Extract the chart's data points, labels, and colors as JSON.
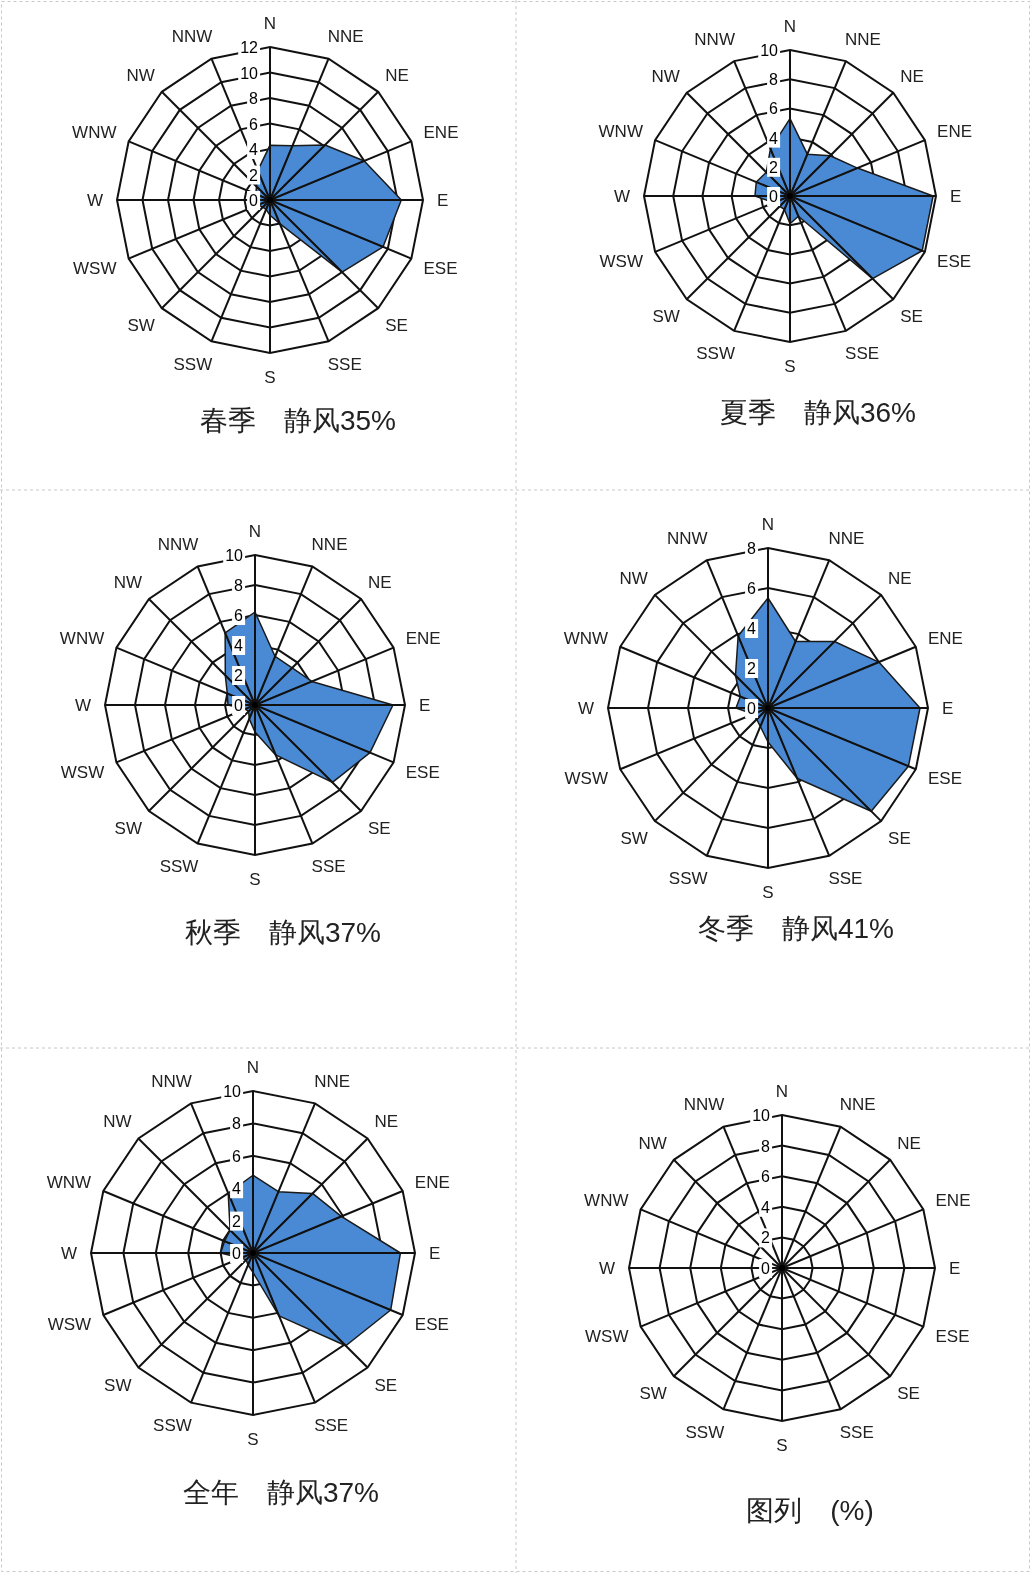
{
  "chart_data": [
    {
      "type": "radar",
      "title": "春季　静风35%",
      "categories": [
        "N",
        "NNE",
        "NE",
        "ENE",
        "E",
        "ESE",
        "SE",
        "SSE",
        "S",
        "SSW",
        "SW",
        "WSW",
        "W",
        "WNW",
        "NW",
        "NNW"
      ],
      "ylim": [
        0,
        12
      ],
      "yticks": [
        0,
        2,
        4,
        6,
        8,
        10,
        12
      ],
      "grid": true,
      "series": [
        {
          "color": "#4a8ad4",
          "values": [
            4.3,
            4.6,
            6.1,
            8.0,
            10.3,
            9.6,
            8.0,
            2.0,
            1.2,
            0.8,
            0.8,
            1.0,
            1.8,
            1.2,
            1.5,
            2.5
          ]
        }
      ]
    },
    {
      "type": "radar",
      "title": "夏季　静风36%",
      "categories": [
        "N",
        "NNE",
        "NE",
        "ENE",
        "E",
        "ESE",
        "SE",
        "SSE",
        "S",
        "SSW",
        "SW",
        "WSW",
        "W",
        "WNW",
        "NW",
        "NNW"
      ],
      "ylim": [
        0,
        10
      ],
      "yticks": [
        0,
        2,
        4,
        6,
        8,
        10
      ],
      "grid": true,
      "series": [
        {
          "color": "#4a8ad4",
          "values": [
            5.3,
            3.1,
            3.9,
            5.0,
            9.8,
            9.8,
            8.0,
            1.5,
            1.9,
            1.0,
            1.0,
            1.2,
            2.4,
            2.5,
            2.3,
            3.5
          ]
        }
      ]
    },
    {
      "type": "radar",
      "title": "秋季　静风37%",
      "categories": [
        "N",
        "NNE",
        "NE",
        "ENE",
        "E",
        "ESE",
        "SE",
        "SSE",
        "S",
        "SSW",
        "SW",
        "WSW",
        "W",
        "WNW",
        "NW",
        "NNW"
      ],
      "ylim": [
        0,
        10
      ],
      "yticks": [
        0,
        2,
        4,
        6,
        8,
        10
      ],
      "grid": true,
      "series": [
        {
          "color": "#4a8ad4",
          "values": [
            6.2,
            3.5,
            3.5,
            4.1,
            9.2,
            8.3,
            7.3,
            3.6,
            1.8,
            1.0,
            0.6,
            0.7,
            1.8,
            2.0,
            2.8,
            5.2
          ]
        }
      ]
    },
    {
      "type": "radar",
      "title": "冬季　静风41%",
      "categories": [
        "N",
        "NNE",
        "NE",
        "ENE",
        "E",
        "ESE",
        "SE",
        "SSE",
        "S",
        "SSW",
        "SW",
        "WSW",
        "W",
        "WNW",
        "NW",
        "NNW"
      ],
      "ylim": [
        0,
        8
      ],
      "yticks": [
        0,
        2,
        4,
        6,
        8
      ],
      "grid": true,
      "series": [
        {
          "color": "#4a8ad4",
          "values": [
            5.5,
            3.6,
            4.7,
            6.0,
            7.6,
            7.6,
            7.3,
            3.8,
            1.7,
            1.0,
            0.8,
            0.8,
            1.6,
            1.5,
            2.3,
            3.9
          ]
        }
      ]
    },
    {
      "type": "radar",
      "title": "全年　静风37%",
      "categories": [
        "N",
        "NNE",
        "NE",
        "ENE",
        "E",
        "ESE",
        "SE",
        "SSE",
        "S",
        "SSW",
        "SW",
        "WSW",
        "W",
        "WNW",
        "NW",
        "NNW"
      ],
      "ylim": [
        0,
        10
      ],
      "yticks": [
        0,
        2,
        4,
        6,
        8,
        10
      ],
      "grid": true,
      "series": [
        {
          "color": "#4a8ad4",
          "values": [
            4.8,
            4.1,
            5.2,
            5.9,
            9.1,
            9.2,
            8.1,
            4.2,
            1.2,
            0.8,
            0.6,
            0.8,
            2.0,
            1.9,
            2.0,
            4.0
          ]
        }
      ]
    },
    {
      "type": "radar",
      "title": "图列　(%)",
      "categories": [
        "N",
        "NNE",
        "NE",
        "ENE",
        "E",
        "ESE",
        "SE",
        "SSE",
        "S",
        "SSW",
        "SW",
        "WSW",
        "W",
        "WNW",
        "NW",
        "NNW"
      ],
      "ylim": [
        0,
        10
      ],
      "yticks": [
        0,
        2,
        4,
        6,
        8,
        10
      ],
      "grid": true
    }
  ]
}
